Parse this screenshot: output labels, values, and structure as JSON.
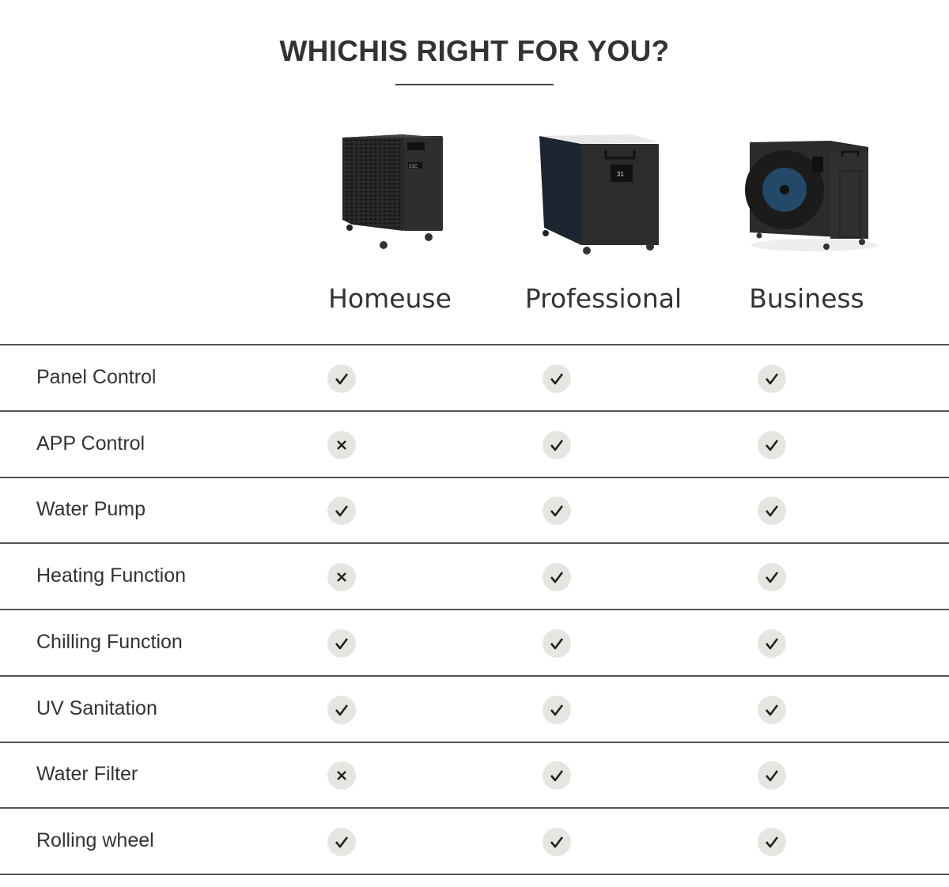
{
  "title": "WHICHIS RIGHT FOR YOU?",
  "products": [
    {
      "name": "Homeuse"
    },
    {
      "name": "Professional"
    },
    {
      "name": "Business"
    }
  ],
  "features": [
    {
      "label": "Panel Control",
      "values": [
        true,
        true,
        true
      ]
    },
    {
      "label": "APP Control",
      "values": [
        false,
        true,
        true
      ]
    },
    {
      "label": "Water Pump",
      "values": [
        true,
        true,
        true
      ]
    },
    {
      "label": "Heating Function",
      "values": [
        false,
        true,
        true
      ]
    },
    {
      "label": "Chilling Function",
      "values": [
        true,
        true,
        true
      ]
    },
    {
      "label": "UV Sanitation",
      "values": [
        true,
        true,
        true
      ]
    },
    {
      "label": "Water Filter",
      "values": [
        false,
        true,
        true
      ]
    },
    {
      "label": "Rolling wheel",
      "values": [
        true,
        true,
        true
      ]
    }
  ],
  "colors": {
    "text": "#333333",
    "icon_bg": "#e6e5e1",
    "rule": "#555555",
    "accent_fan": "#2b6ea8"
  }
}
